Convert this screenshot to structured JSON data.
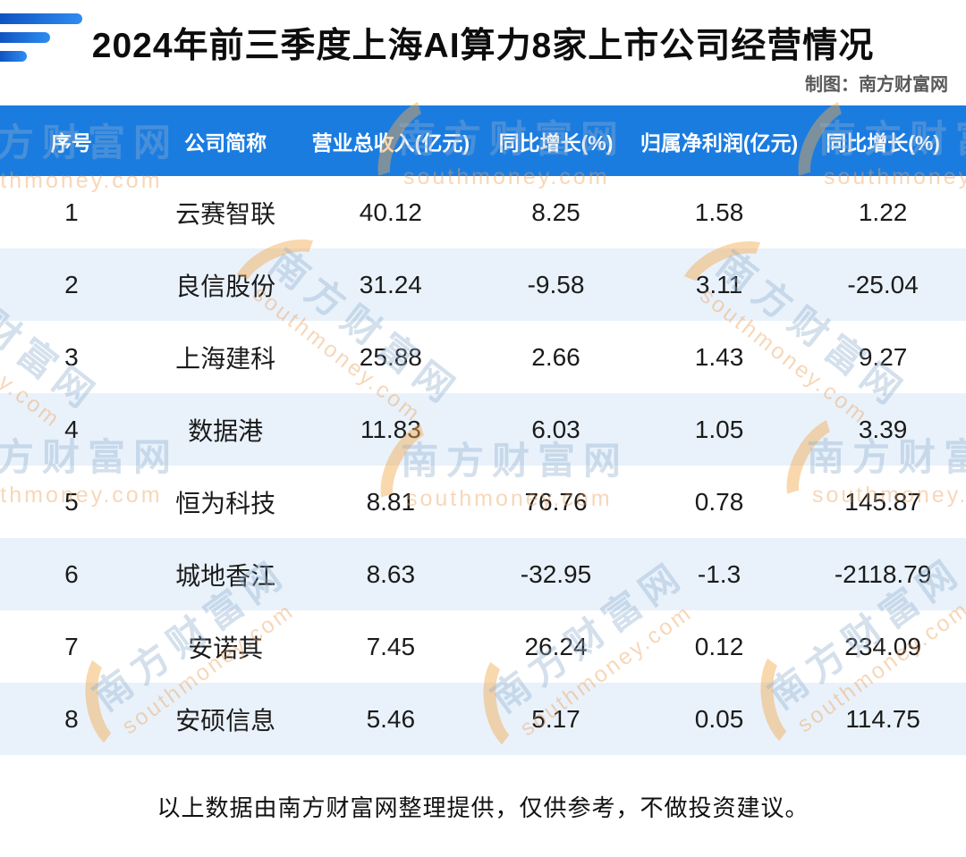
{
  "page": {
    "title": "2024年前三季度上海AI算力8家上市公司经营情况",
    "credit": "制图：南方财富网",
    "footnote": "以上数据由南方财富网整理提供，仅供参考，不做投资建议。"
  },
  "watermark": {
    "cn": "南方财富网",
    "en": "southmoney.com"
  },
  "colors": {
    "header_bg": "#1b7ce0",
    "row_alt": "#e9f2fb",
    "logo_blue": "#1e6fd8",
    "accent_orange": "#f3a94e",
    "title_text": "#0d0d0d",
    "credit_text": "#595959"
  },
  "chart_data": {
    "type": "table",
    "title": "2024年前三季度上海AI算力8家上市公司经营情况",
    "columns": [
      "序号",
      "公司简称",
      "营业总收入(亿元)",
      "同比增长(%)",
      "归属净利润(亿元)",
      "同比增长(%)"
    ],
    "rows": [
      [
        "1",
        "云赛智联",
        "40.12",
        "8.25",
        "1.58",
        "1.22"
      ],
      [
        "2",
        "良信股份",
        "31.24",
        "-9.58",
        "3.11",
        "-25.04"
      ],
      [
        "3",
        "上海建科",
        "25.88",
        "2.66",
        "1.43",
        "9.27"
      ],
      [
        "4",
        "数据港",
        "11.83",
        "6.03",
        "1.05",
        "3.39"
      ],
      [
        "5",
        "恒为科技",
        "8.81",
        "76.76",
        "0.78",
        "145.87"
      ],
      [
        "6",
        "城地香江",
        "8.63",
        "-32.95",
        "-1.3",
        "-2118.79"
      ],
      [
        "7",
        "安诺其",
        "7.45",
        "26.24",
        "0.12",
        "234.09"
      ],
      [
        "8",
        "安硕信息",
        "5.46",
        "5.17",
        "0.05",
        "114.75"
      ]
    ]
  }
}
